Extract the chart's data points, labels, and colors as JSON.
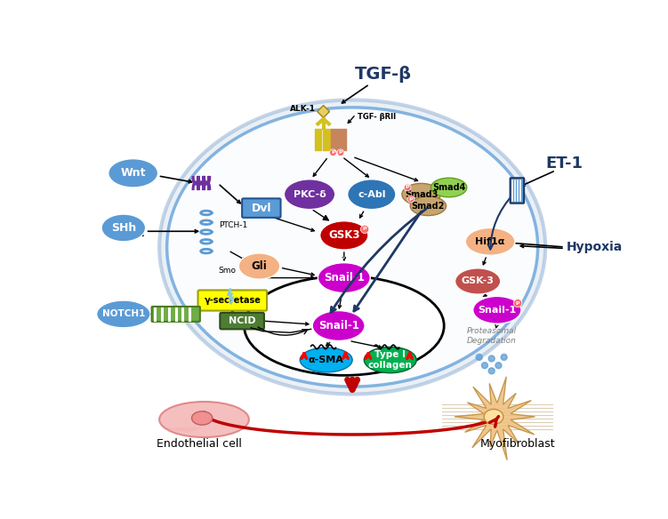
{
  "title_tgf": "TGF-β",
  "title_et1": "ET-1",
  "title_hypoxia": "Hypoxia",
  "label_wnt": "Wnt",
  "label_shh": "SHh",
  "label_notch1": "NOTCH1",
  "label_dvl": "Dvl",
  "label_gli": "Gli",
  "label_pkc": "PKC-δ",
  "label_cabl": "c-Abl",
  "label_gsk3": "GSK3",
  "label_snail1_cyto": "Snail-1",
  "label_snail1_nuc": "Snail-1",
  "label_smad3": "Smad3",
  "label_smad4": "Smad4",
  "label_smad2": "Smad2",
  "label_hif1a": "Hif1α",
  "label_gsk3b": "GSK-3",
  "label_snail1b": "Snail-1",
  "label_gamma": "γ-secretase",
  "label_ncid": "NCID",
  "label_ptch1": "PTCH-1",
  "label_smo": "Smo",
  "label_alk1": "ALK-1",
  "label_tgfbrii": "TGF- βRII",
  "label_alpha_sma": "α-SMA",
  "label_type1col": "Type I\ncollagen",
  "label_proteasomal": "Proteasomal\nDegradation",
  "label_endothelial": "Endothelial cell",
  "label_myofibroblast": "Myofibroblast",
  "color_wnt": "#5b9bd5",
  "color_shh": "#5b9bd5",
  "color_notch1": "#5b9bd5",
  "color_dvl": "#5b9bd5",
  "color_gli": "#f4b183",
  "color_pkc": "#7030a0",
  "color_cabl": "#2e75b6",
  "color_gsk3": "#c00000",
  "color_snail1": "#cc00cc",
  "color_smad3": "#c8a46e",
  "color_smad4": "#92d050",
  "color_smad2": "#c8a46e",
  "color_hif1a": "#f4b183",
  "color_gsk3b": "#c0504d",
  "color_snail1b": "#cc00cc",
  "color_gamma": "#ffff00",
  "color_ncid": "#4e7c34",
  "color_alpha_sma": "#00b0f0",
  "color_type1col": "#00b050",
  "color_endothelial_body": "#f4b8b8",
  "color_myofibroblast_body": "#f0c080"
}
